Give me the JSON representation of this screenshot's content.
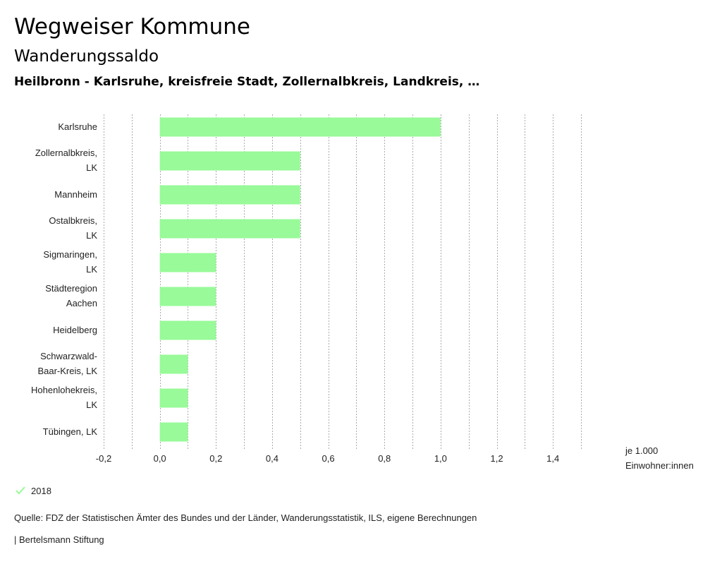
{
  "header": {
    "title": "Wegweiser Kommune",
    "subtitle": "Wanderungssaldo",
    "selection": "Heilbronn - Karlsruhe, kreisfreie Stadt, Zollernalbkreis, Landkreis, …"
  },
  "chart_data": {
    "type": "bar",
    "orientation": "horizontal",
    "categories": [
      [
        "Karlsruhe"
      ],
      [
        "Zollernalbkreis,",
        "LK"
      ],
      [
        "Mannheim"
      ],
      [
        "Ostalbkreis,",
        "LK"
      ],
      [
        "Sigmaringen,",
        "LK"
      ],
      [
        "Städteregion",
        "Aachen"
      ],
      [
        "Heidelberg"
      ],
      [
        "Schwarzwald-",
        "Baar-Kreis, LK"
      ],
      [
        "Hohenlohekreis,",
        "LK"
      ],
      [
        "Tübingen, LK"
      ]
    ],
    "series": [
      {
        "name": "2018",
        "values": [
          1.0,
          0.5,
          0.5,
          0.5,
          0.2,
          0.2,
          0.2,
          0.1,
          0.1,
          0.1
        ]
      }
    ],
    "xlim": [
      -0.2,
      1.5
    ],
    "xticks": [
      "-0,2",
      "0,0",
      "0,2",
      "0,4",
      "0,6",
      "0,8",
      "1,0",
      "1,2",
      "1,4"
    ],
    "xtick_values": [
      -0.2,
      0.0,
      0.2,
      0.4,
      0.6,
      0.8,
      1.0,
      1.2,
      1.4
    ],
    "grid_minor_step": 0.1,
    "unit_label": [
      "je 1.000",
      "Einwohner:innen"
    ],
    "bar_color": "#98fa98",
    "grid_color": "#aaaaaa"
  },
  "legend": {
    "label": "2018",
    "color": "#98fa98"
  },
  "footer": {
    "source": "Quelle: FDZ der Statistischen Ämter des Bundes und der Länder, Wanderungsstatistik, ILS, eigene Berechnungen",
    "brand": "| Bertelsmann Stiftung"
  }
}
